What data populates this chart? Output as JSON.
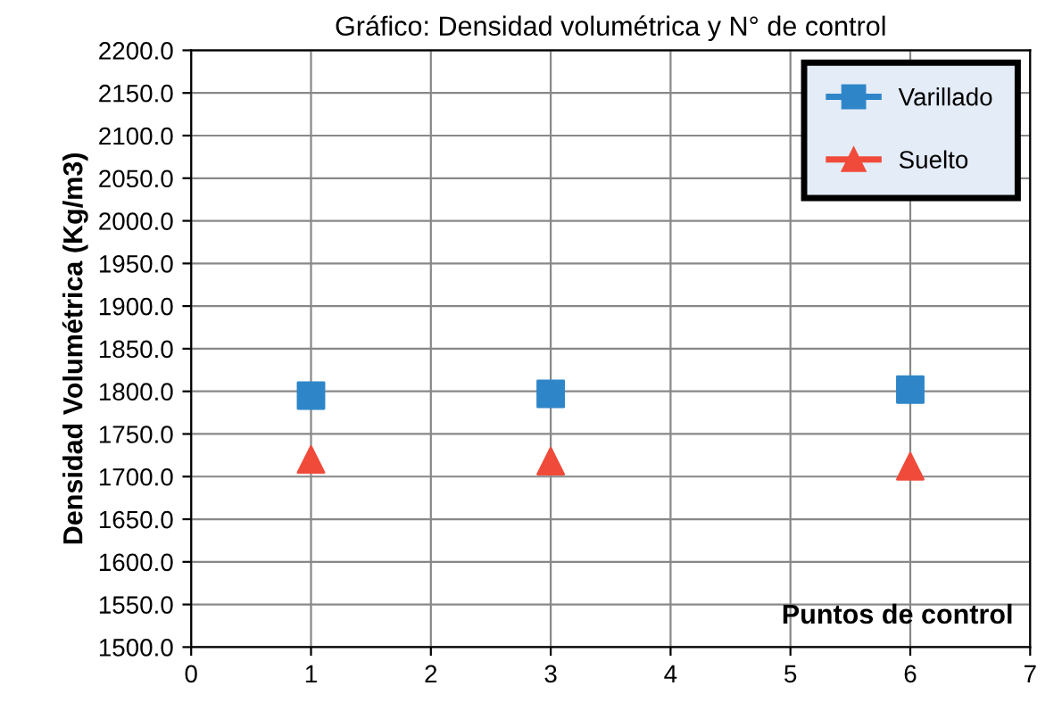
{
  "chart_data": {
    "type": "scatter",
    "title": "Gráfico: Densidad volumétrica y N° de control",
    "xlabel": "Puntos de control",
    "ylabel": "Densidad Volumétrica (Kg/m3)",
    "x": [
      1,
      3,
      6
    ],
    "series": [
      {
        "name": "Varillado",
        "color": "#2e86c9",
        "marker": "square",
        "values": [
          1795,
          1797,
          1802
        ]
      },
      {
        "name": "Suelto",
        "color": "#f04a3a",
        "marker": "triangle",
        "values": [
          1720,
          1718,
          1712
        ]
      }
    ],
    "xlim": [
      0,
      7
    ],
    "xticks": [
      0,
      1,
      2,
      3,
      4,
      5,
      6,
      7
    ],
    "ylim": [
      1500,
      2200
    ],
    "yticks": [
      {
        "value": 1500,
        "label": "1500.0"
      },
      {
        "value": 1550,
        "label": "1550.0"
      },
      {
        "value": 1600,
        "label": "1600.0"
      },
      {
        "value": 1650,
        "label": "1650.0"
      },
      {
        "value": 1700,
        "label": "1700.0"
      },
      {
        "value": 1750,
        "label": "1750.0"
      },
      {
        "value": 1800,
        "label": "1800.0"
      },
      {
        "value": 1850,
        "label": "1850.0"
      },
      {
        "value": 1900,
        "label": "1900.0"
      },
      {
        "value": 1950,
        "label": "1950.0"
      },
      {
        "value": 2000,
        "label": "2000.0"
      },
      {
        "value": 2050,
        "label": "2050.0"
      },
      {
        "value": 2100,
        "label": "2100.0"
      },
      {
        "value": 2150,
        "label": "2150.0"
      },
      {
        "value": 2200,
        "label": "2200.0"
      }
    ],
    "grid": true,
    "legend": "top right"
  }
}
